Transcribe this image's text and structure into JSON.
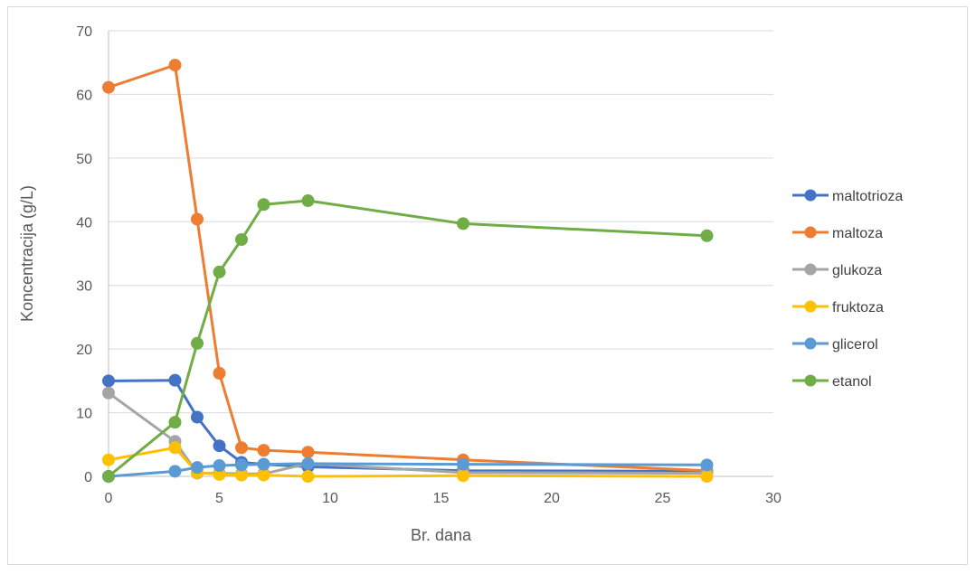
{
  "chart_data": {
    "type": "line",
    "title": "",
    "xlabel": "Br. dana",
    "ylabel": "Koncentracija (g/L)",
    "xlim": [
      0,
      30
    ],
    "ylim": [
      0,
      70
    ],
    "xticks": [
      0,
      5,
      10,
      15,
      20,
      25,
      30
    ],
    "yticks": [
      0,
      10,
      20,
      30,
      40,
      50,
      60,
      70
    ],
    "grid": "horizontal",
    "legend_position": "right",
    "x": [
      0,
      3,
      4,
      5,
      6,
      7,
      9,
      16,
      27
    ],
    "series": [
      {
        "name": "maltotrioza",
        "color": "#4472c4",
        "values": [
          15.0,
          15.1,
          9.3,
          4.8,
          2.2,
          1.9,
          1.5,
          0.9,
          0.8
        ]
      },
      {
        "name": "maltoza",
        "color": "#ed7d31",
        "values": [
          61.1,
          64.6,
          40.4,
          16.2,
          4.5,
          4.1,
          3.8,
          2.6,
          0.9
        ]
      },
      {
        "name": "glukoza",
        "color": "#a5a5a5",
        "values": [
          13.1,
          5.5,
          0.5,
          0.5,
          0.4,
          0.4,
          2.0,
          0.6,
          0.5
        ]
      },
      {
        "name": "fruktoza",
        "color": "#ffc000",
        "values": [
          2.6,
          4.5,
          0.6,
          0.3,
          0.2,
          0.2,
          0.0,
          0.1,
          0.0
        ]
      },
      {
        "name": "glicerol",
        "color": "#5b9bd5",
        "values": [
          0.0,
          0.8,
          1.4,
          1.7,
          1.8,
          1.9,
          2.0,
          1.9,
          1.8
        ]
      },
      {
        "name": "etanol",
        "color": "#70ad47",
        "values": [
          0.0,
          8.5,
          20.9,
          32.1,
          37.2,
          42.7,
          43.3,
          39.7,
          37.8
        ]
      }
    ]
  }
}
